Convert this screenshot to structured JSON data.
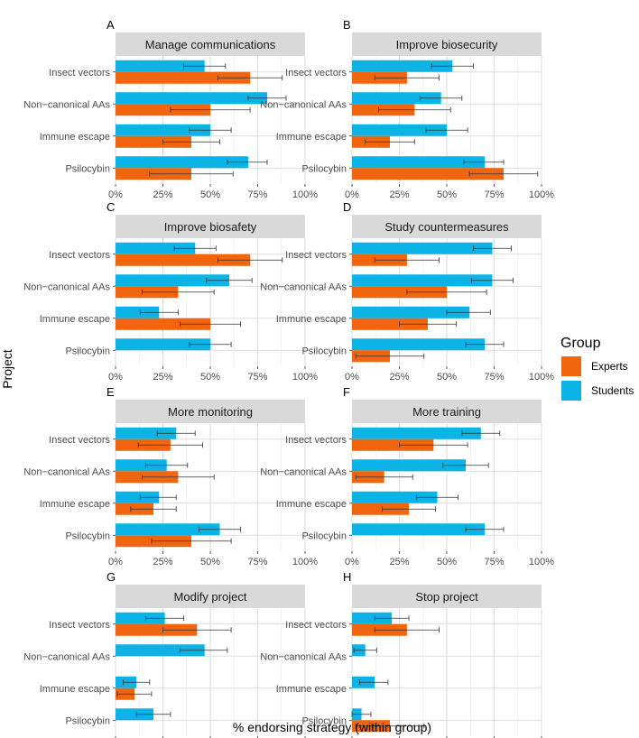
{
  "chart_data": {
    "type": "bar",
    "orientation": "horizontal",
    "ylabel": "Project",
    "xlabel": "% endorsing strategy (within group)",
    "xlim": [
      0,
      100
    ],
    "xticks": [
      "0%",
      "25%",
      "50%",
      "75%",
      "100%"
    ],
    "categories": [
      "Insect vectors",
      "Non−canonical AAs",
      "Immune escape",
      "Psilocybin"
    ],
    "legend": {
      "title": "Group",
      "placement": "right",
      "entries": [
        {
          "name": "Experts",
          "color": "#F0650E"
        },
        {
          "name": "Students",
          "color": "#0BB3E6"
        }
      ]
    },
    "colors": {
      "Experts": "#F0650E",
      "Students": "#0BB3E6"
    },
    "panels": [
      {
        "letter": "A",
        "title": "Manage communications",
        "series": [
          {
            "name": "Students",
            "values": [
              47,
              80,
              50,
              70
            ],
            "err_low": [
              36,
              70,
              39,
              59
            ],
            "err_high": [
              58,
              90,
              61,
              80
            ]
          },
          {
            "name": "Experts",
            "values": [
              71,
              50,
              40,
              40
            ],
            "err_low": [
              54,
              29,
              25,
              18
            ],
            "err_high": [
              88,
              71,
              55,
              62
            ]
          }
        ]
      },
      {
        "letter": "B",
        "title": "Improve biosecurity",
        "series": [
          {
            "name": "Students",
            "values": [
              53,
              47,
              50,
              70
            ],
            "err_low": [
              42,
              36,
              39,
              59
            ],
            "err_high": [
              64,
              58,
              61,
              80
            ]
          },
          {
            "name": "Experts",
            "values": [
              29,
              33,
              20,
              80
            ],
            "err_low": [
              12,
              14,
              7,
              62
            ],
            "err_high": [
              46,
              52,
              33,
              98
            ]
          }
        ]
      },
      {
        "letter": "C",
        "title": "Improve biosafety",
        "series": [
          {
            "name": "Students",
            "values": [
              42,
              60,
              23,
              50
            ],
            "err_low": [
              31,
              48,
              13,
              39
            ],
            "err_high": [
              53,
              72,
              33,
              61
            ]
          },
          {
            "name": "Experts",
            "values": [
              71,
              33,
              50,
              0
            ],
            "err_low": [
              54,
              14,
              34,
              0
            ],
            "err_high": [
              88,
              52,
              66,
              0
            ]
          }
        ]
      },
      {
        "letter": "D",
        "title": "Study countermeasures",
        "series": [
          {
            "name": "Students",
            "values": [
              74,
              74,
              62,
              70
            ],
            "err_low": [
              64,
              63,
              50,
              60
            ],
            "err_high": [
              84,
              85,
              73,
              80
            ]
          },
          {
            "name": "Experts",
            "values": [
              29,
              50,
              40,
              20
            ],
            "err_low": [
              12,
              29,
              25,
              2
            ],
            "err_high": [
              46,
              71,
              55,
              38
            ]
          }
        ]
      },
      {
        "letter": "E",
        "title": "More monitoring",
        "series": [
          {
            "name": "Students",
            "values": [
              32,
              27,
              23,
              55
            ],
            "err_low": [
              22,
              16,
              13,
              44
            ],
            "err_high": [
              42,
              38,
              32,
              66
            ]
          },
          {
            "name": "Experts",
            "values": [
              29,
              33,
              20,
              40
            ],
            "err_low": [
              12,
              14,
              8,
              19
            ],
            "err_high": [
              46,
              52,
              32,
              61
            ]
          }
        ]
      },
      {
        "letter": "F",
        "title": "More training",
        "series": [
          {
            "name": "Students",
            "values": [
              68,
              60,
              45,
              70
            ],
            "err_low": [
              58,
              48,
              34,
              60
            ],
            "err_high": [
              78,
              72,
              56,
              80
            ]
          },
          {
            "name": "Experts",
            "values": [
              43,
              17,
              30,
              0
            ],
            "err_low": [
              25,
              2,
              16,
              0
            ],
            "err_high": [
              61,
              32,
              44,
              0
            ]
          }
        ]
      },
      {
        "letter": "G",
        "title": "Modify project",
        "series": [
          {
            "name": "Students",
            "values": [
              26,
              47,
              11,
              20
            ],
            "err_low": [
              16,
              34,
              4,
              11
            ],
            "err_high": [
              36,
              59,
              18,
              29
            ]
          },
          {
            "name": "Experts",
            "values": [
              43,
              0,
              10,
              0
            ],
            "err_low": [
              25,
              0,
              1,
              0
            ],
            "err_high": [
              61,
              0,
              19,
              0
            ]
          }
        ]
      },
      {
        "letter": "H",
        "title": "Stop project",
        "series": [
          {
            "name": "Students",
            "values": [
              21,
              7,
              12,
              5
            ],
            "err_low": [
              12,
              1,
              4,
              0
            ],
            "err_high": [
              30,
              13,
              19,
              10
            ]
          },
          {
            "name": "Experts",
            "values": [
              29,
              0,
              0,
              20
            ],
            "err_low": [
              12,
              0,
              0,
              2
            ],
            "err_high": [
              46,
              0,
              0,
              38
            ]
          }
        ]
      }
    ]
  }
}
